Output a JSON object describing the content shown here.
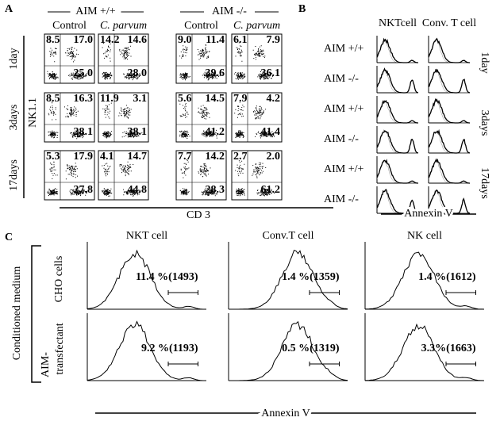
{
  "panel_a": {
    "label": "A",
    "groups": [
      "AIM +/+",
      "AIM -/-"
    ],
    "conditions": [
      "Control",
      "C. parvum",
      "Control",
      "C. parvum"
    ],
    "y_axis": "NK1.1",
    "x_axis": "CD 3",
    "rows": [
      {
        "label": "1day",
        "plots": [
          [
            "8.5",
            "17.0",
            "25.0"
          ],
          [
            "14.2",
            "14.6",
            "28.0"
          ],
          [
            "9.0",
            "11.4",
            "39.6"
          ],
          [
            "6.1",
            "7.9",
            "36.1"
          ]
        ]
      },
      {
        "label": "3days",
        "plots": [
          [
            "8.5",
            "16.3",
            "28.1"
          ],
          [
            "11.9",
            "3.1",
            "38.1"
          ],
          [
            "5.6",
            "14.5",
            "41.2"
          ],
          [
            "7.9",
            "4.2",
            "41.4"
          ]
        ]
      },
      {
        "label": "17days",
        "plots": [
          [
            "5.3",
            "17.9",
            "27.8"
          ],
          [
            "4.1",
            "14.7",
            "44.8"
          ],
          [
            "7.7",
            "14.2",
            "28.3"
          ],
          [
            "2.7",
            "2.0",
            "61.2"
          ]
        ]
      }
    ]
  },
  "panel_b": {
    "label": "B",
    "columns": [
      "NKTcell",
      "Conv. T cell"
    ],
    "rows": [
      "AIM +/+",
      "AIM -/-",
      "AIM +/+",
      "AIM -/-",
      "AIM +/+",
      "AIM -/-"
    ],
    "timepoints": [
      "1day",
      "3days",
      "17days"
    ],
    "x_axis": "Annexin V"
  },
  "panel_c": {
    "label": "C",
    "side_label": "Conditioned medium",
    "row_labels": [
      "CHO cells",
      "AIM-",
      "transfectant"
    ],
    "columns": [
      "NKT cell",
      "Conv.T cell",
      "NK cell"
    ],
    "annotations": [
      [
        "11.4 %(1493)",
        "1.4 %(1359)",
        "1.4 %(1612)"
      ],
      [
        "9.2 %(1193)",
        "0.5 %(1319)",
        "3.3%(1663)"
      ]
    ],
    "x_axis": "Annexin V"
  }
}
